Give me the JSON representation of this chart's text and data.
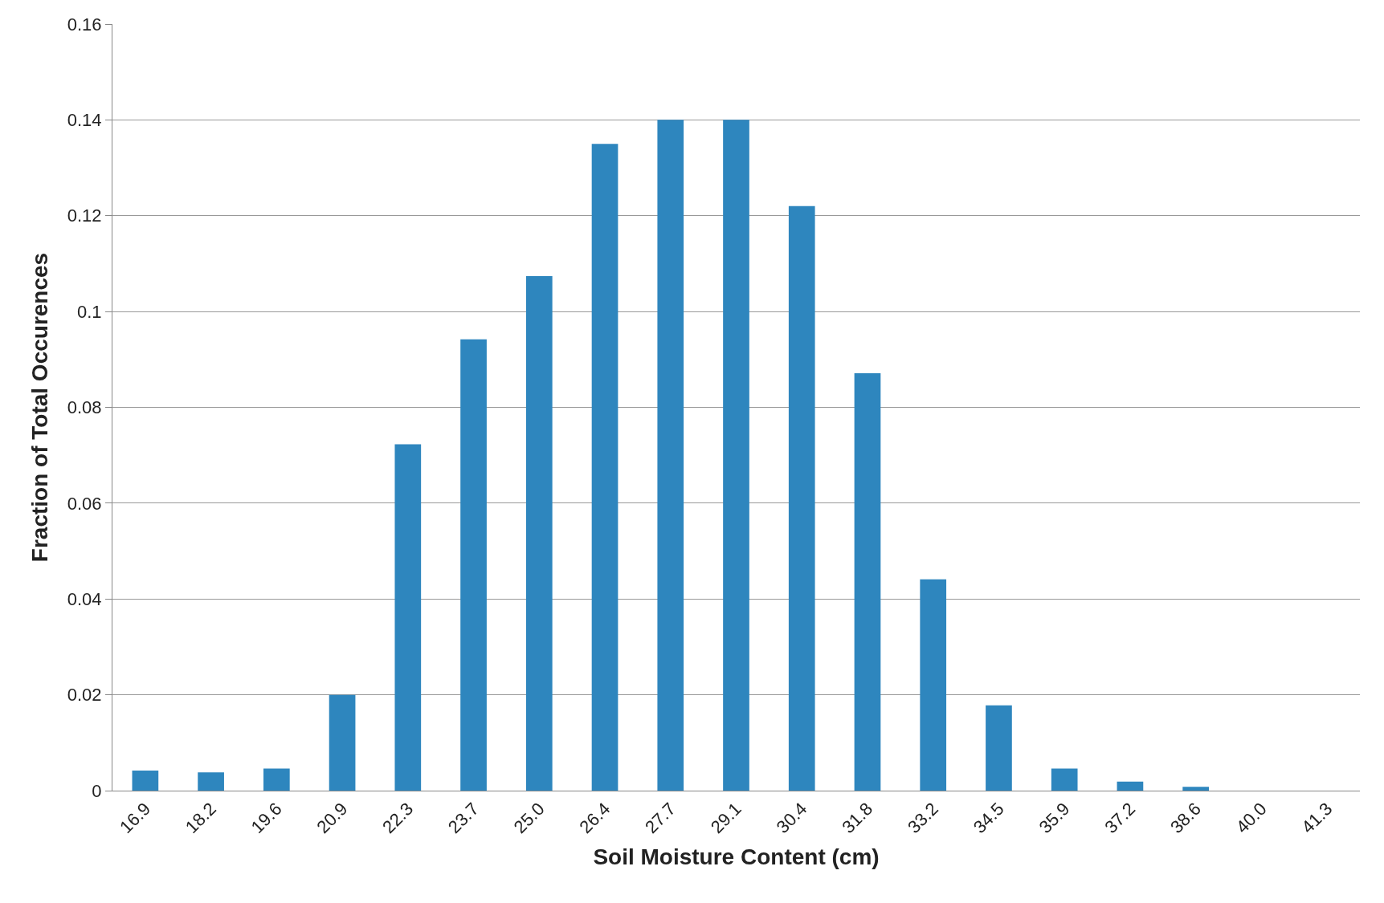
{
  "chart_data": {
    "type": "bar",
    "xlabel": "Soil Moisture Content (cm)",
    "ylabel": "Fraction of Total Occurences",
    "categories": [
      "16.9",
      "18.2",
      "19.6",
      "20.9",
      "22.3",
      "23.7",
      "25.0",
      "26.4",
      "27.7",
      "29.1",
      "30.4",
      "31.8",
      "33.2",
      "34.5",
      "35.9",
      "37.2",
      "38.6",
      "40.0",
      "41.3"
    ],
    "values": [
      0.0042,
      0.0038,
      0.0046,
      0.02,
      0.0723,
      0.0942,
      0.1074,
      0.135,
      0.14,
      0.14,
      0.122,
      0.0871,
      0.0441,
      0.0178,
      0.0046,
      0.0019,
      0.0008,
      0,
      0
    ],
    "color": "#2e86be",
    "ylim": [
      0,
      0.16
    ],
    "yticks": [
      {
        "value": 0,
        "label": "0"
      },
      0.02,
      0.04,
      0.06,
      0.08,
      {
        "value": 0.1,
        "label": "0.1"
      },
      0.12,
      0.14,
      0.16
    ],
    "grid": "y",
    "legend": false
  }
}
